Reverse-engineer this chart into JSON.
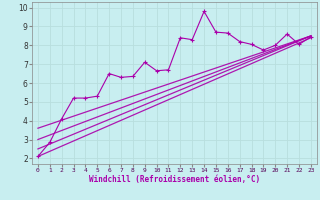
{
  "bg_color": "#c8eef0",
  "line_color": "#aa00aa",
  "grid_color": "#aadddd",
  "xlabel": "Windchill (Refroidissement éolien,°C)",
  "ylabel_ticks": [
    2,
    3,
    4,
    5,
    6,
    7,
    8,
    9,
    10
  ],
  "xlabel_ticks": [
    0,
    1,
    2,
    3,
    4,
    5,
    6,
    7,
    8,
    9,
    10,
    11,
    12,
    13,
    14,
    15,
    16,
    17,
    18,
    19,
    20,
    21,
    22,
    23
  ],
  "xlim": [
    -0.5,
    23.5
  ],
  "ylim": [
    1.7,
    10.3
  ],
  "main_x": [
    0,
    1,
    2,
    3,
    4,
    5,
    6,
    7,
    8,
    9,
    10,
    11,
    12,
    13,
    14,
    15,
    16,
    17,
    18,
    19,
    20,
    21,
    22,
    23
  ],
  "main_y": [
    2.1,
    2.85,
    4.1,
    5.2,
    5.2,
    5.3,
    6.5,
    6.3,
    6.35,
    7.1,
    6.65,
    6.7,
    8.4,
    8.3,
    9.8,
    8.7,
    8.65,
    8.2,
    8.05,
    7.75,
    8.0,
    8.6,
    8.05,
    8.45
  ],
  "line1_x": [
    0,
    23
  ],
  "line1_y": [
    2.1,
    8.4
  ],
  "line2_x": [
    0,
    23
  ],
  "line2_y": [
    2.5,
    8.5
  ],
  "line3_x": [
    0,
    23
  ],
  "line3_y": [
    3.0,
    8.5
  ],
  "line4_x": [
    0,
    23
  ],
  "line4_y": [
    3.6,
    8.5
  ]
}
